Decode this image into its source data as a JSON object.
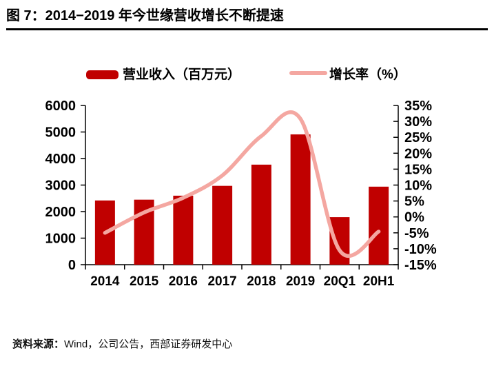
{
  "figure": {
    "title": "图 7：2014−2019 年今世缘营收增长不断提速",
    "source_label": "资料来源：",
    "source_text": "Wind，公司公告，西部证券研发中心"
  },
  "chart_data": {
    "type": "bar",
    "subtype": "bar-and-line-dual-axis",
    "categories": [
      "2014",
      "2015",
      "2016",
      "2017",
      "2018",
      "2019",
      "20Q1",
      "20H1"
    ],
    "series": [
      {
        "name": "营业收入（百万元）",
        "type": "bar",
        "axis": "left",
        "color": "#C00000",
        "values": [
          2420,
          2450,
          2600,
          2970,
          3770,
          4910,
          1790,
          2940
        ]
      },
      {
        "name": "增长率（%）",
        "type": "line",
        "axis": "right",
        "color": "#F4A7A1",
        "values": [
          -5.0,
          1.4,
          6.0,
          13.0,
          25.4,
          30.8,
          -10.5,
          -4.6
        ]
      }
    ],
    "left_axis": {
      "min": 0,
      "max": 6000,
      "ticks": [
        "6000",
        "5000",
        "4000",
        "3000",
        "2000",
        "1000",
        "0"
      ]
    },
    "right_axis": {
      "min": -15,
      "max": 35,
      "ticks": [
        "35%",
        "30%",
        "25%",
        "20%",
        "15%",
        "10%",
        "5%",
        "0%",
        "-5%",
        "-10%",
        "-15%"
      ]
    },
    "legend_position": "top",
    "grid": false,
    "smooth_line": true
  }
}
